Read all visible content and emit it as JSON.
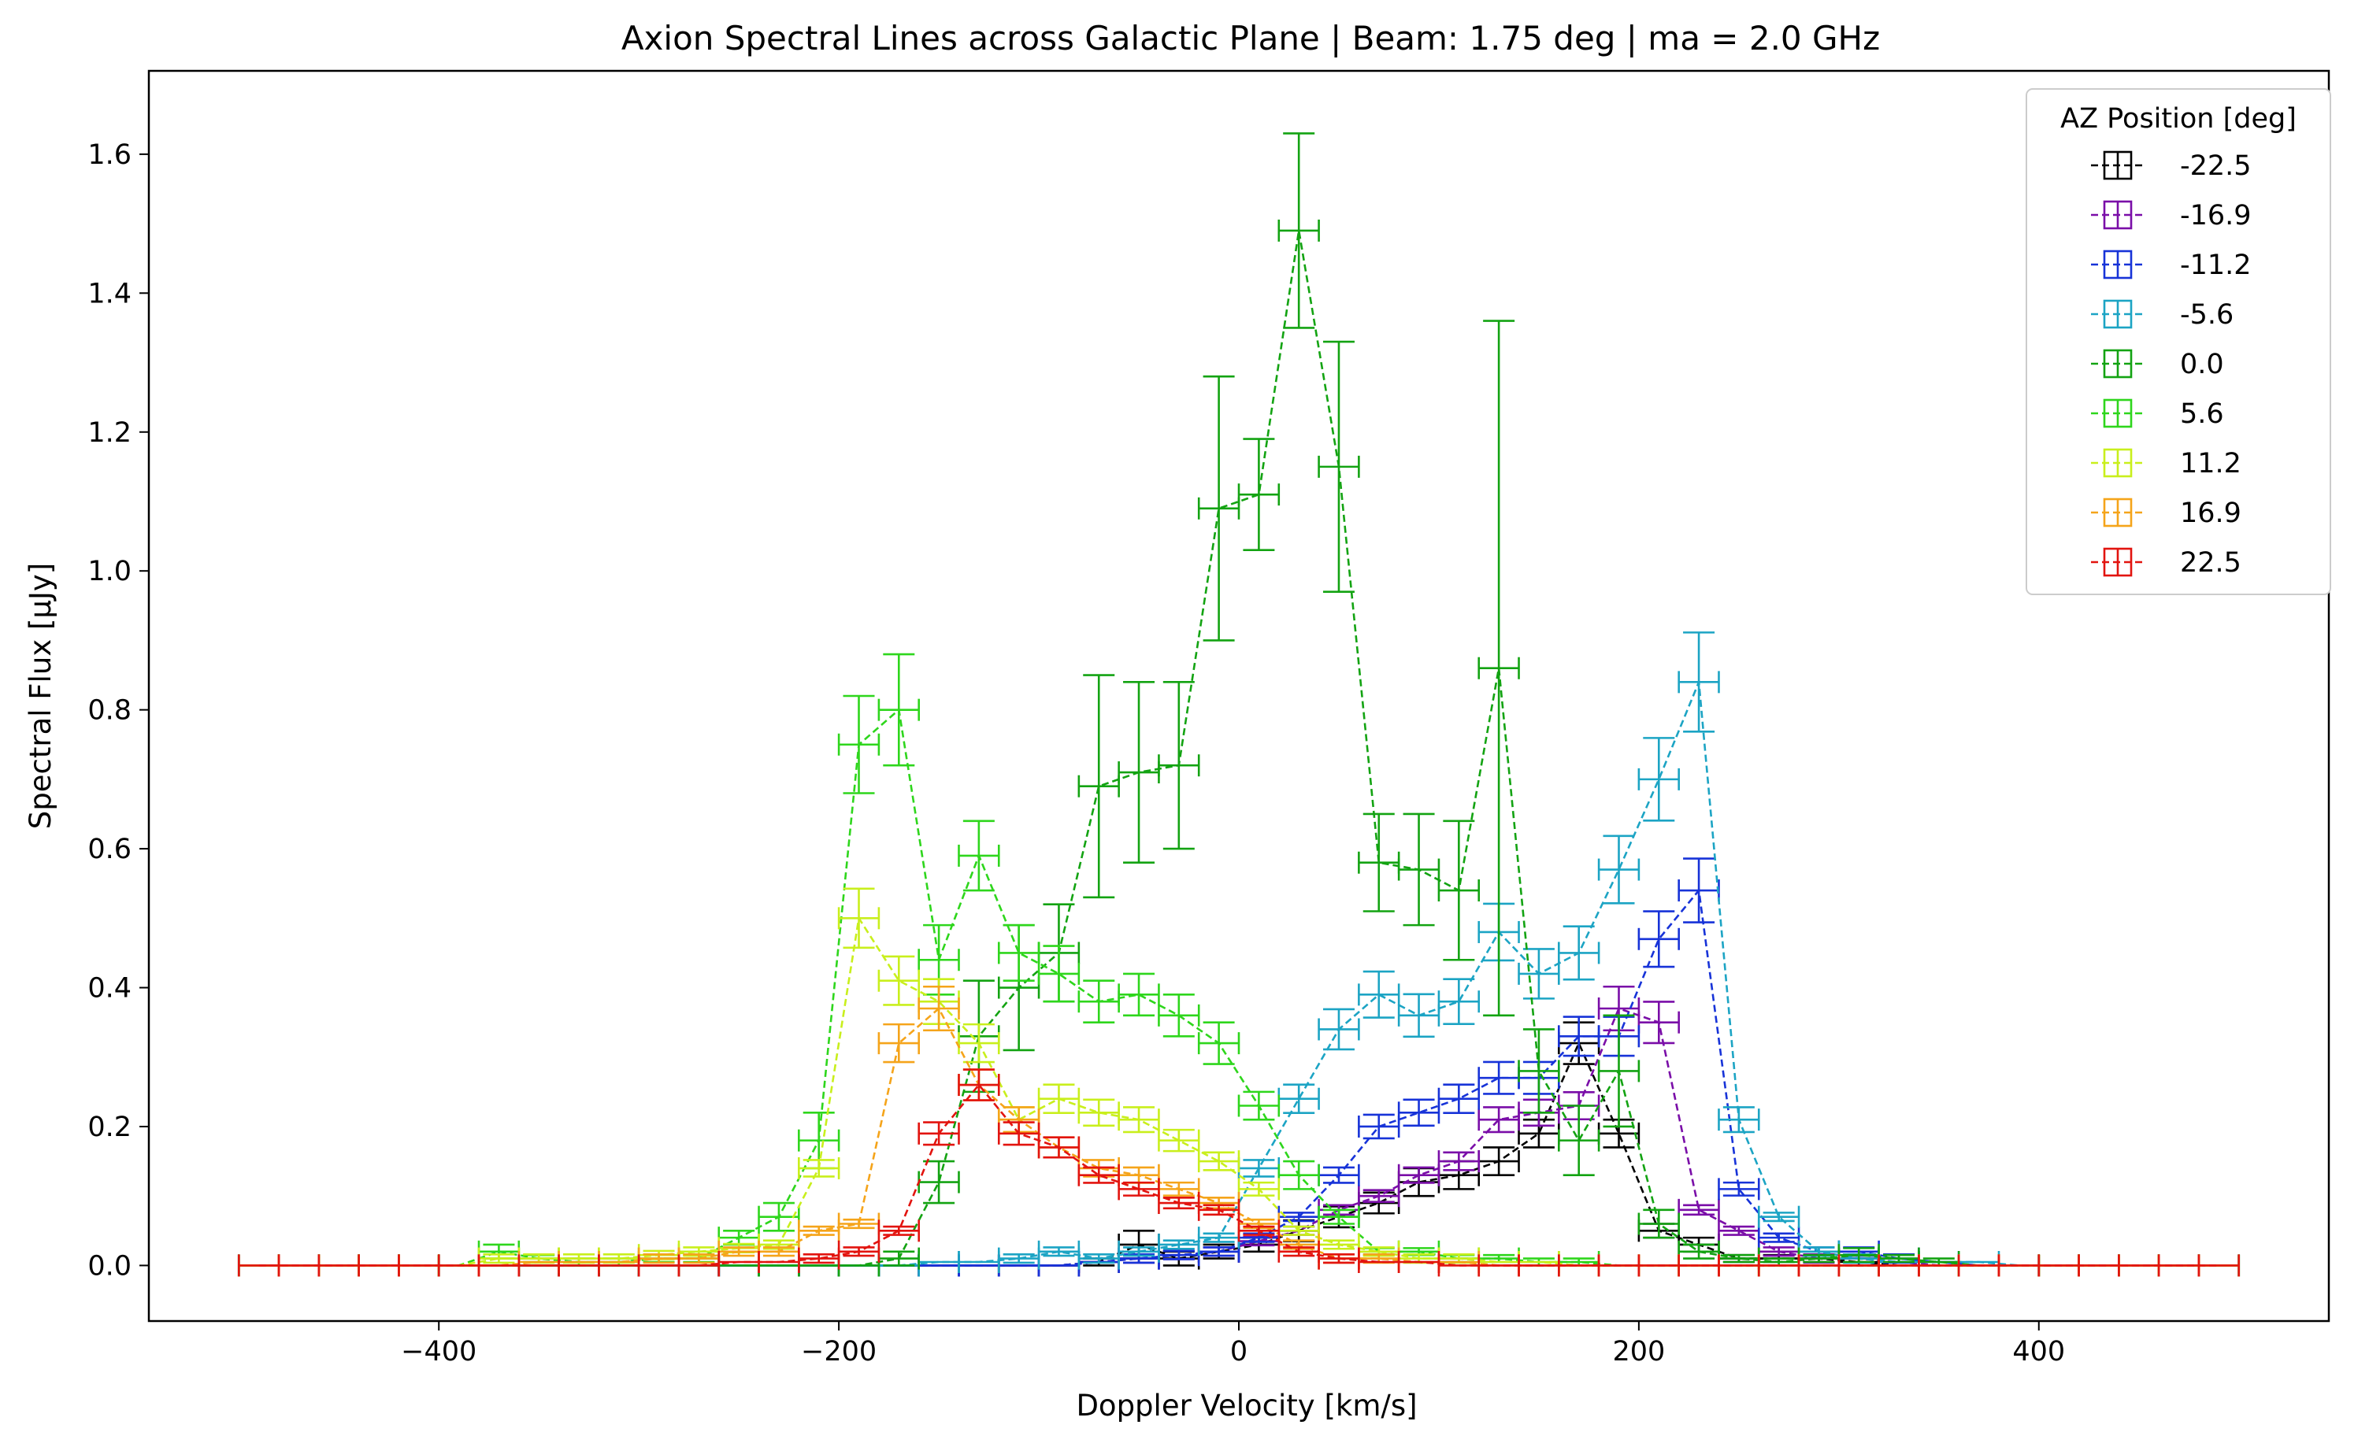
{
  "chart_data": {
    "type": "line",
    "title": "Axion Spectral Lines across Galactic Plane | Beam: 1.75 deg | ma = 2.0 GHz",
    "xlabel": "Doppler Velocity [km/s]",
    "ylabel": "Spectral Flux [μJy]",
    "xlim": [
      -545,
      545
    ],
    "ylim": [
      -0.08,
      1.72
    ],
    "xticks": [
      -400,
      -200,
      0,
      200,
      400
    ],
    "xtick_labels": [
      "−400",
      "−200",
      "0",
      "200",
      "400"
    ],
    "yticks": [
      0.0,
      0.2,
      0.4,
      0.6,
      0.8,
      1.0,
      1.2,
      1.4,
      1.6
    ],
    "ytick_labels": [
      "0.0",
      "0.2",
      "0.4",
      "0.6",
      "0.8",
      "1.0",
      "1.2",
      "1.4",
      "1.6"
    ],
    "x_halfwidth": 10,
    "grid": false,
    "legend": {
      "title": "AZ Position [deg]",
      "placement": "top-right"
    },
    "x": [
      -490,
      -470,
      -450,
      -430,
      -410,
      -390,
      -370,
      -350,
      -330,
      -310,
      -290,
      -270,
      -250,
      -230,
      -210,
      -190,
      -170,
      -150,
      -130,
      -110,
      -90,
      -70,
      -50,
      -30,
      -10,
      10,
      30,
      50,
      70,
      90,
      110,
      130,
      150,
      170,
      190,
      210,
      230,
      250,
      270,
      290,
      310,
      330,
      350,
      370,
      390,
      410,
      430,
      450,
      470,
      490
    ],
    "series": [
      {
        "name": "-22.5",
        "color": "#000000",
        "values": [
          0,
          0,
          0,
          0,
          0,
          0,
          0,
          0,
          0,
          0,
          0,
          0,
          0,
          0,
          0,
          0,
          0,
          0,
          0,
          0,
          0,
          0.005,
          0.03,
          0.01,
          0.02,
          0.03,
          0.05,
          0.07,
          0.09,
          0.12,
          0.13,
          0.15,
          0.19,
          0.32,
          0.19,
          0.05,
          0.03,
          0.01,
          0.01,
          0.01,
          0.005,
          0,
          0,
          0,
          0,
          0,
          0,
          0,
          0,
          0
        ],
        "errors": [
          0,
          0,
          0,
          0,
          0,
          0,
          0,
          0,
          0,
          0,
          0,
          0,
          0,
          0,
          0,
          0,
          0,
          0,
          0,
          0,
          0,
          0.005,
          0.02,
          0.01,
          0.01,
          0.01,
          0.015,
          0.015,
          0.015,
          0.02,
          0.02,
          0.02,
          0.02,
          0.03,
          0.02,
          0.01,
          0.01,
          0.005,
          0.005,
          0.005,
          0.005,
          0,
          0,
          0,
          0,
          0,
          0,
          0,
          0,
          0
        ]
      },
      {
        "name": "-16.9",
        "color": "#7a0ea8",
        "values": [
          0,
          0,
          0,
          0,
          0,
          0,
          0,
          0,
          0,
          0,
          0,
          0,
          0,
          0,
          0,
          0,
          0,
          0,
          0,
          0,
          0,
          0.005,
          0.01,
          0.015,
          0.02,
          0.035,
          0.05,
          0.08,
          0.1,
          0.13,
          0.15,
          0.21,
          0.22,
          0.23,
          0.37,
          0.35,
          0.08,
          0.05,
          0.02,
          0.01,
          0.01,
          0.005,
          0,
          0,
          0,
          0,
          0,
          0,
          0,
          0
        ]
      },
      {
        "name": "-11.2",
        "color": "#1733d8",
        "values": [
          0,
          0,
          0,
          0,
          0,
          0,
          0,
          0,
          0,
          0,
          0,
          0,
          0,
          0,
          0,
          0,
          0,
          0,
          0,
          0,
          0,
          0.005,
          0.01,
          0.015,
          0.02,
          0.04,
          0.07,
          0.13,
          0.2,
          0.22,
          0.24,
          0.27,
          0.27,
          0.33,
          0.33,
          0.47,
          0.54,
          0.11,
          0.04,
          0.02,
          0.02,
          0.01,
          0.005,
          0,
          0,
          0,
          0,
          0,
          0,
          0
        ]
      },
      {
        "name": "-5.6",
        "color": "#1ca4c4",
        "values": [
          0,
          0,
          0,
          0,
          0,
          0,
          0,
          0,
          0,
          0,
          0,
          0,
          0,
          0,
          0,
          0,
          0,
          0.005,
          0.005,
          0.01,
          0.02,
          0.01,
          0.02,
          0.03,
          0.04,
          0.14,
          0.24,
          0.34,
          0.39,
          0.36,
          0.38,
          0.48,
          0.42,
          0.45,
          0.57,
          0.7,
          0.84,
          0.21,
          0.07,
          0.02,
          0.01,
          0.005,
          0.005,
          0.005,
          0,
          0,
          0,
          0,
          0,
          0
        ]
      },
      {
        "name": "0.0",
        "color": "#13a312",
        "values": [
          0,
          0,
          0,
          0,
          0,
          0,
          0,
          0,
          0,
          0,
          0,
          0,
          0,
          0,
          0,
          0,
          0.01,
          0.12,
          0.33,
          0.4,
          0.45,
          0.69,
          0.71,
          0.72,
          1.09,
          1.11,
          1.49,
          1.15,
          0.58,
          0.57,
          0.54,
          0.86,
          0.28,
          0.18,
          0.28,
          0.06,
          0.02,
          0.01,
          0.005,
          0.01,
          0.015,
          0.01,
          0.005,
          0,
          0,
          0,
          0,
          0,
          0,
          0
        ],
        "errors": [
          0,
          0,
          0,
          0,
          0,
          0,
          0,
          0,
          0,
          0,
          0,
          0,
          0,
          0,
          0,
          0,
          0.01,
          0.03,
          0.08,
          0.09,
          0.07,
          0.16,
          0.13,
          0.12,
          0.19,
          0.08,
          0.14,
          0.18,
          0.07,
          0.08,
          0.1,
          0.5,
          0.06,
          0.05,
          0.08,
          0.02,
          0.01,
          0.005,
          0.005,
          0.005,
          0.01,
          0.005,
          0.005,
          0,
          0,
          0,
          0,
          0,
          0,
          0
        ]
      },
      {
        "name": "5.6",
        "color": "#2ed61c",
        "values": [
          0,
          0,
          0,
          0,
          0,
          0,
          0.02,
          0.01,
          0.005,
          0.005,
          0.01,
          0.01,
          0.04,
          0.07,
          0.18,
          0.75,
          0.8,
          0.44,
          0.59,
          0.45,
          0.42,
          0.38,
          0.39,
          0.36,
          0.32,
          0.23,
          0.13,
          0.07,
          0.02,
          0.02,
          0.01,
          0.01,
          0.005,
          0.005,
          0,
          0,
          0,
          0,
          0,
          0,
          0,
          0,
          0,
          0,
          0,
          0,
          0,
          0,
          0,
          0
        ],
        "errors": [
          0,
          0,
          0,
          0,
          0,
          0,
          0.01,
          0.005,
          0.005,
          0.005,
          0.005,
          0.005,
          0.01,
          0.02,
          0.04,
          0.07,
          0.08,
          0.05,
          0.05,
          0.04,
          0.04,
          0.03,
          0.03,
          0.03,
          0.03,
          0.02,
          0.02,
          0.01,
          0.005,
          0.005,
          0.005,
          0.005,
          0.005,
          0.005,
          0,
          0,
          0,
          0,
          0,
          0,
          0,
          0,
          0,
          0,
          0,
          0,
          0,
          0,
          0,
          0
        ]
      },
      {
        "name": "11.2",
        "color": "#c9ef1c",
        "values": [
          0,
          0,
          0,
          0,
          0,
          0,
          0.01,
          0.01,
          0.01,
          0.01,
          0.015,
          0.02,
          0.025,
          0.03,
          0.14,
          0.5,
          0.41,
          0.38,
          0.32,
          0.21,
          0.24,
          0.22,
          0.21,
          0.18,
          0.15,
          0.11,
          0.05,
          0.03,
          0.02,
          0.01,
          0.01,
          0.005,
          0.005,
          0,
          0,
          0,
          0,
          0,
          0,
          0,
          0,
          0,
          0,
          0,
          0,
          0,
          0,
          0,
          0,
          0
        ]
      },
      {
        "name": "16.9",
        "color": "#f5a41a",
        "values": [
          0,
          0,
          0,
          0,
          0,
          0,
          0,
          0.005,
          0.005,
          0.005,
          0.01,
          0.01,
          0.02,
          0.02,
          0.05,
          0.06,
          0.32,
          0.37,
          0.26,
          0.21,
          0.17,
          0.14,
          0.13,
          0.11,
          0.09,
          0.06,
          0.03,
          0.01,
          0.01,
          0.005,
          0.005,
          0,
          0,
          0,
          0,
          0,
          0,
          0,
          0,
          0,
          0,
          0,
          0,
          0,
          0,
          0,
          0,
          0,
          0,
          0
        ]
      },
      {
        "name": "22.5",
        "color": "#e2140f",
        "values": [
          0,
          0,
          0,
          0,
          0,
          0,
          0,
          0,
          0,
          0,
          0,
          0,
          0.005,
          0.005,
          0.01,
          0.02,
          0.05,
          0.19,
          0.26,
          0.19,
          0.17,
          0.13,
          0.11,
          0.09,
          0.08,
          0.05,
          0.02,
          0.01,
          0.005,
          0.005,
          0,
          0,
          0,
          0,
          0,
          0,
          0,
          0,
          0,
          0,
          0,
          0,
          0,
          0,
          0,
          0,
          0,
          0,
          0,
          0
        ]
      }
    ]
  }
}
